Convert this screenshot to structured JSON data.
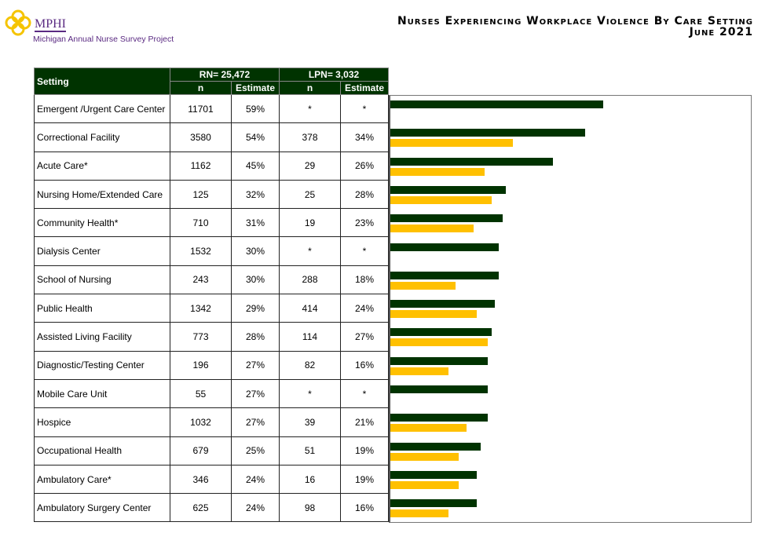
{
  "header": {
    "logo_text": "MPHI",
    "subtitle": "Michigan Annual Nurse Survey Project",
    "title": "Nurses Experiencing Workplace Violence By Care Setting",
    "date": "June 2021"
  },
  "table": {
    "setting_header": "Setting",
    "rn_header": "RN= 25,472",
    "lpn_header": "LPN= 3,032",
    "n_label": "n",
    "estimate_label": "Estimate"
  },
  "colors": {
    "rn": "#003300",
    "lpn": "#ffc000",
    "logo": "#f5c400",
    "brand": "#5a2a82"
  },
  "chart_data": {
    "type": "bar",
    "orientation": "horizontal",
    "xlim": [
      0,
      100
    ],
    "categories": [
      "Emergent /Urgent Care Center",
      "Correctional Facility",
      "Acute Care*",
      "Nursing Home/Extended Care",
      "Community Health*",
      "Dialysis Center",
      "School of Nursing",
      "Public Health",
      "Assisted Living Facility",
      "Diagnostic/Testing Center",
      "Mobile Care Unit",
      "Hospice",
      "Occupational Health",
      "Ambulatory Care*",
      "Ambulatory Surgery Center"
    ],
    "rn_n": [
      "11701",
      "3580",
      "1162",
      "125",
      "710",
      "1532",
      "243",
      "1342",
      "773",
      "196",
      "55",
      "1032",
      "679",
      "346",
      "625"
    ],
    "rn_est": [
      "59%",
      "54%",
      "45%",
      "32%",
      "31%",
      "30%",
      "30%",
      "29%",
      "28%",
      "27%",
      "27%",
      "27%",
      "25%",
      "24%",
      "24%"
    ],
    "lpn_n": [
      "*",
      "378",
      "29",
      "25",
      "19",
      "*",
      "288",
      "414",
      "114",
      "82",
      "*",
      "39",
      "51",
      "16",
      "98"
    ],
    "lpn_est": [
      "*",
      "34%",
      "26%",
      "28%",
      "23%",
      "*",
      "18%",
      "24%",
      "27%",
      "16%",
      "*",
      "21%",
      "19%",
      "19%",
      "16%"
    ],
    "series": [
      {
        "values": [
          59,
          54,
          45,
          32,
          31,
          30,
          30,
          29,
          28,
          27,
          27,
          27,
          25,
          24,
          24
        ]
      },
      {
        "values": [
          null,
          34,
          26,
          28,
          23,
          null,
          18,
          24,
          27,
          16,
          null,
          21,
          19,
          19,
          16
        ]
      }
    ]
  }
}
